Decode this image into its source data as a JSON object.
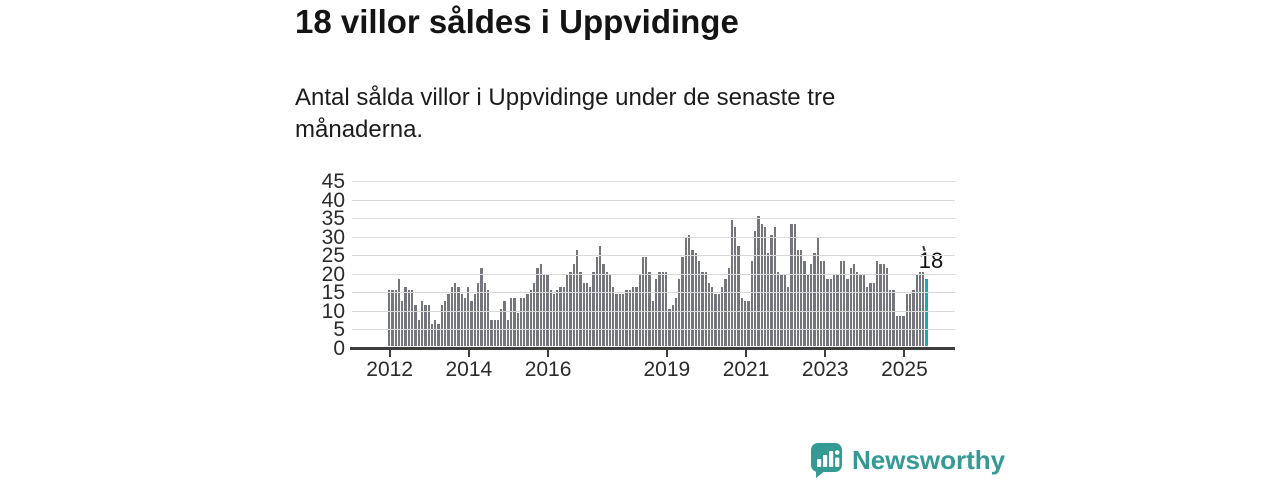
{
  "header": {
    "title": "18 villor såldes i Uppvidinge",
    "subtitle": "Antal sålda villor i Uppvidinge under de senaste tre månaderna."
  },
  "chart_data": {
    "type": "bar",
    "title": "18 villor såldes i Uppvidinge",
    "description": "Antal sålda villor i Uppvidinge under de senaste tre månaderna.",
    "frequency": "monthly",
    "start": "2012-01",
    "end": "2025-08",
    "values": [
      15,
      15,
      15,
      18,
      12,
      16,
      15,
      15,
      11,
      7,
      12,
      11,
      11,
      6,
      7,
      6,
      11,
      12,
      14,
      16,
      17,
      16,
      14,
      13,
      16,
      12,
      14,
      17,
      21,
      17,
      15,
      7,
      7,
      7,
      10,
      12,
      7,
      13,
      13,
      9,
      13,
      13,
      14,
      15,
      17,
      21,
      22,
      19,
      19,
      15,
      14,
      15,
      16,
      16,
      19,
      20,
      22,
      26,
      20,
      17,
      17,
      16,
      20,
      24,
      27,
      22,
      20,
      19,
      16,
      14,
      14,
      14,
      15,
      15,
      16,
      16,
      19,
      24,
      24,
      20,
      12,
      18,
      20,
      20,
      20,
      10,
      11,
      13,
      18,
      24,
      29,
      30,
      26,
      25,
      23,
      20,
      20,
      17,
      16,
      14,
      14,
      16,
      18,
      21,
      34,
      32,
      27,
      13,
      12,
      12,
      23,
      31,
      35,
      33,
      32,
      25,
      30,
      32,
      20,
      19,
      19,
      16,
      33,
      33,
      26,
      26,
      23,
      19,
      22,
      25,
      29,
      23,
      23,
      18,
      18,
      19,
      19,
      23,
      23,
      18,
      21,
      22,
      20,
      19,
      19,
      16,
      17,
      17,
      23,
      22,
      22,
      21,
      15,
      15,
      8,
      8,
      8,
      14,
      14,
      15,
      19,
      20,
      20,
      18
    ],
    "highlight_last": true,
    "last_value_label": "18",
    "ylim": [
      0,
      45
    ],
    "y_ticks": [
      0,
      5,
      10,
      15,
      20,
      25,
      30,
      35,
      40,
      45
    ],
    "x_tick_labels": [
      "2012",
      "2014",
      "2016",
      "2019",
      "2021",
      "2023",
      "2025"
    ],
    "x_tick_month_indices": [
      0,
      24,
      48,
      84,
      108,
      132,
      156
    ],
    "grid": true,
    "legend": "none",
    "bar_color": "#75757d",
    "highlight_color": "#10b0b2",
    "axis_color": "#3d3d3d",
    "grid_color": "#d9d9d9"
  },
  "branding": {
    "logo_text": "Newsworthy",
    "logo_color": "#359a94",
    "logo_icon": "speech-bubble-bar-chart-icon"
  }
}
